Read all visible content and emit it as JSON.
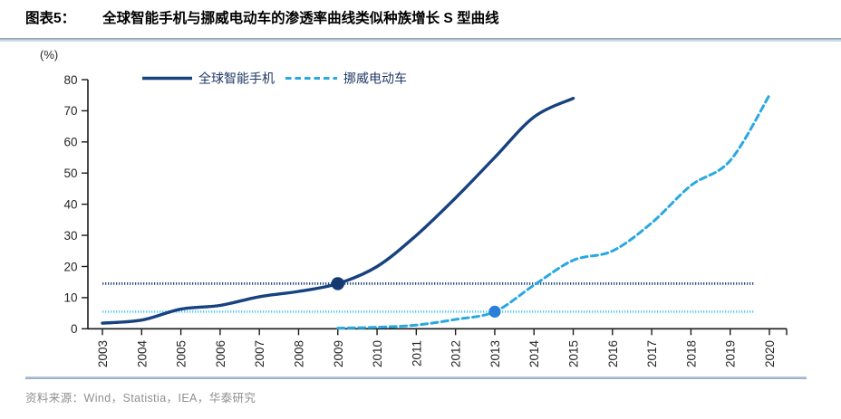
{
  "header": {
    "figure_label": "图表5：",
    "title": "全球智能手机与挪威电动车的渗透率曲线类似种族增长 S 型曲线"
  },
  "footer": {
    "source": "资料来源：Wind，Statistia，IEA，华泰研究"
  },
  "colors": {
    "smartphone_line": "#17427F",
    "smartphone_marker": "#123A70",
    "ev_line": "#29A8E2",
    "ev_marker": "#2B7FD6",
    "ref_line_navy": "#2C4C84",
    "ref_line_lightblue": "#63CBF5",
    "axis": "#1a1a1a"
  },
  "chart_data": {
    "type": "line",
    "title": "全球智能手机与挪威电动车的渗透率曲线类似种族增长 S 型曲线",
    "unit_label": "(%)",
    "xlabel": "",
    "ylabel": "(%)",
    "ylim": [
      0,
      80
    ],
    "y_ticks": [
      0,
      10,
      20,
      30,
      40,
      50,
      60,
      70,
      80
    ],
    "x_ticks": [
      2003,
      2004,
      2005,
      2006,
      2007,
      2008,
      2009,
      2010,
      2011,
      2012,
      2013,
      2014,
      2015,
      2016,
      2017,
      2018,
      2019,
      2020
    ],
    "grid": false,
    "legend_position": "top-left-inside",
    "series": [
      {
        "name": "全球智能手机",
        "style": "solid",
        "color": "#17427F",
        "x": [
          2003,
          2004,
          2005,
          2006,
          2007,
          2008,
          2009,
          2010,
          2011,
          2012,
          2013,
          2014,
          2015
        ],
        "values": [
          1.8,
          2.8,
          6.3,
          7.5,
          10.3,
          12,
          14.5,
          20,
          30,
          42,
          55,
          68,
          74
        ],
        "marker": {
          "x": 2009,
          "y": 14.5,
          "color": "#123A70"
        }
      },
      {
        "name": "挪威电动车",
        "style": "dashed",
        "color": "#29A8E2",
        "x": [
          2009,
          2010,
          2011,
          2012,
          2013,
          2014,
          2015,
          2016,
          2017,
          2018,
          2019,
          2020
        ],
        "values": [
          0.2,
          0.5,
          1.2,
          3,
          5.5,
          14,
          22,
          25,
          34,
          46,
          54,
          75
        ],
        "marker": {
          "x": 2013,
          "y": 5.5,
          "color": "#2B7FD6"
        }
      }
    ],
    "reference_lines": [
      {
        "y": 14.5,
        "color": "#2C4C84",
        "style": "dotted"
      },
      {
        "y": 5.5,
        "color": "#63CBF5",
        "style": "dotted"
      }
    ]
  }
}
